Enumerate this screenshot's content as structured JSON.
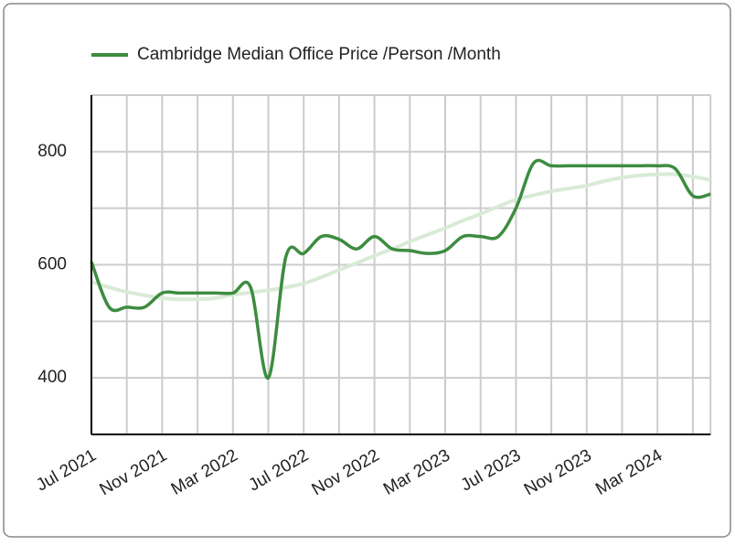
{
  "chart_data": {
    "type": "line",
    "categories": [
      "Jul 2021",
      null,
      null,
      null,
      "Nov 2021",
      null,
      null,
      null,
      "Mar 2022",
      null,
      null,
      null,
      "Jul 2022",
      null,
      null,
      null,
      "Nov 2022",
      null,
      null,
      null,
      "Mar 2023",
      null,
      null,
      null,
      "Jul 2023",
      null,
      null,
      null,
      "Nov 2023",
      null,
      null,
      null,
      "Mar 2024",
      null,
      null,
      null
    ],
    "series": [
      {
        "name": "Cambridge Median Office Price /Person /Month",
        "color": "#3d8c40",
        "values": [
          605,
          525,
          525,
          525,
          550,
          550,
          550,
          550,
          550,
          560,
          400,
          615,
          620,
          650,
          645,
          628,
          650,
          628,
          625,
          620,
          625,
          650,
          650,
          650,
          700,
          780,
          775,
          775,
          775,
          775,
          775,
          775,
          775,
          770,
          722,
          725
        ]
      },
      {
        "color": "#d9ebd7",
        "values": [
          570,
          560,
          552,
          546,
          541,
          539,
          539,
          541,
          547,
          551,
          555,
          560,
          567,
          578,
          591,
          603,
          616,
          628,
          641,
          653,
          665,
          678,
          690,
          703,
          715,
          723,
          730,
          735,
          740,
          748,
          754,
          758,
          760,
          760,
          756,
          750
        ]
      }
    ],
    "ylim": [
      300,
      900
    ],
    "yticks": [
      400,
      600,
      800
    ],
    "minor_yticks": [
      500,
      700,
      900
    ],
    "grid": true,
    "legend": "top"
  }
}
